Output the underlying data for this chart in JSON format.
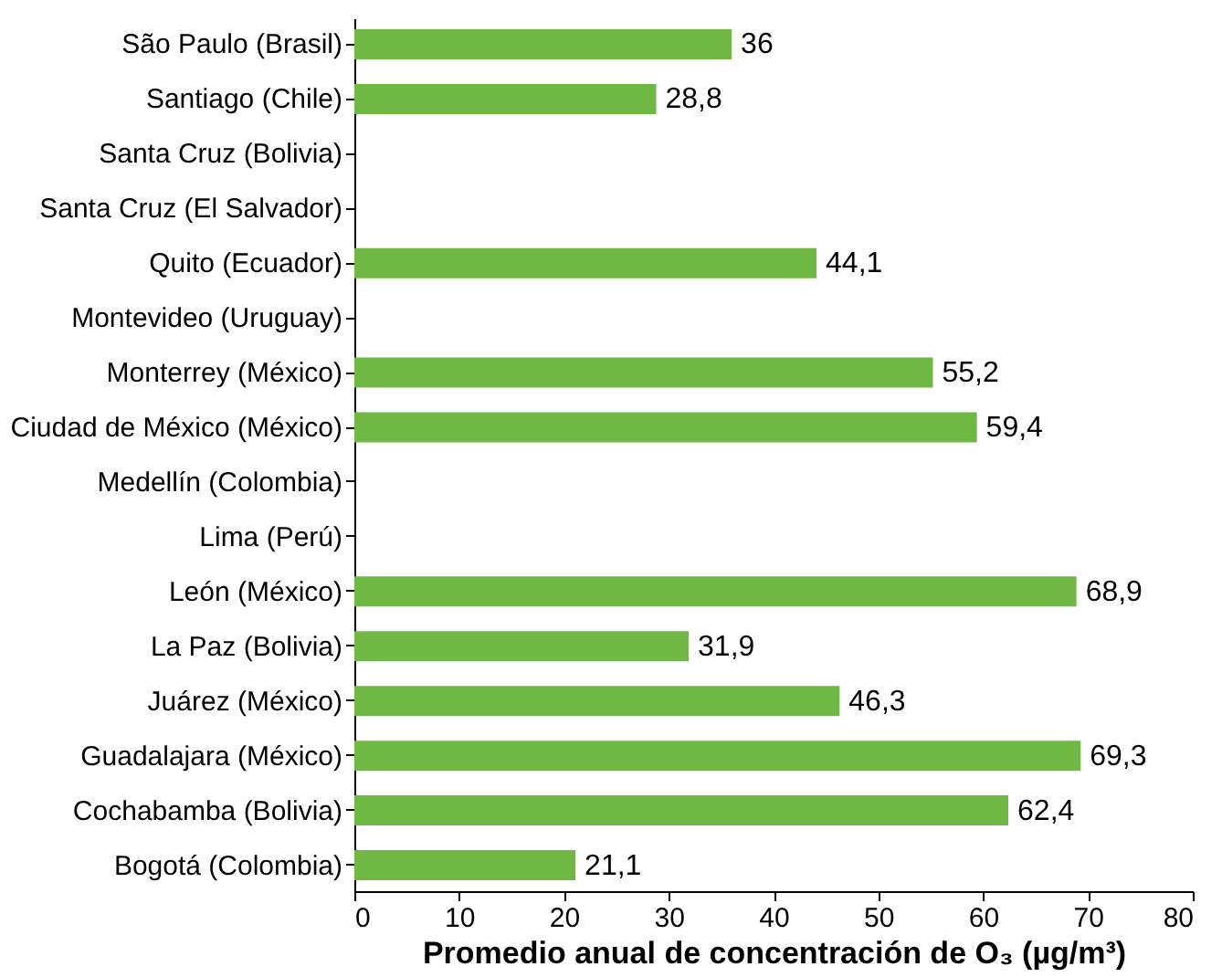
{
  "chart_data": {
    "type": "bar",
    "orientation": "horizontal",
    "xlabel": "Promedio anual de concentración de O₃ (µg/m³)",
    "categories": [
      "São Paulo (Brasil)",
      "Santiago (Chile)",
      "Santa Cruz (Bolivia)",
      "Santa Cruz (El Salvador)",
      "Quito (Ecuador)",
      "Montevideo (Uruguay)",
      "Monterrey (México)",
      "Ciudad de México (México)",
      "Medellín (Colombia)",
      "Lima (Perú)",
      "León (México)",
      "La Paz (Bolivia)",
      "Juárez (México)",
      "Guadalajara (México)",
      "Cochabamba (Bolivia)",
      "Bogotá (Colombia)"
    ],
    "values": [
      36,
      28.8,
      null,
      null,
      44.1,
      null,
      55.2,
      59.4,
      null,
      null,
      68.9,
      31.9,
      46.3,
      69.3,
      62.4,
      21.1
    ],
    "value_labels": [
      "36",
      "28,8",
      null,
      null,
      "44,1",
      null,
      "55,2",
      "59,4",
      null,
      null,
      "68,9",
      "31,9",
      "46,3",
      "69,3",
      "62,4",
      "21,1"
    ],
    "color": "#70b844",
    "xlim": [
      0,
      80
    ],
    "xticks": [
      0,
      10,
      20,
      30,
      40,
      50,
      60,
      70,
      80
    ],
    "grid": false
  }
}
